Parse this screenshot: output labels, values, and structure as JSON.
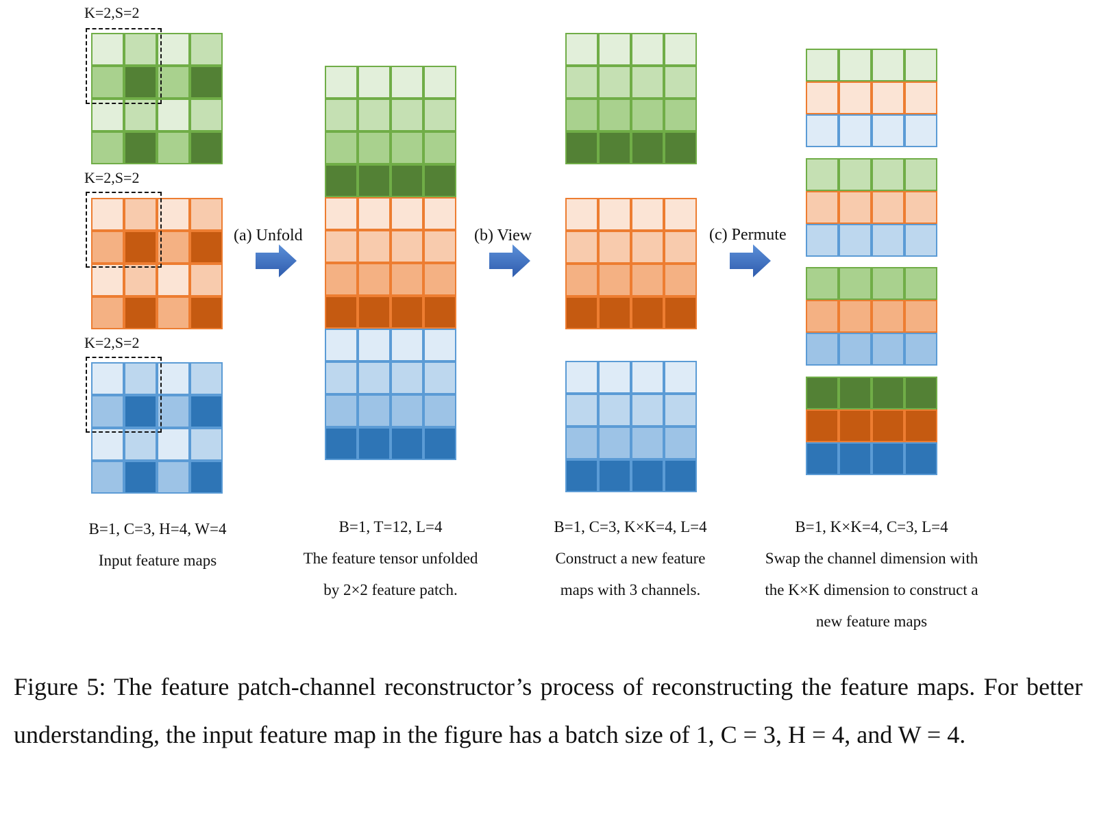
{
  "colors": {
    "green": [
      "#e2efda",
      "#c5e0b3",
      "#a9d18e",
      "#538135"
    ],
    "green_border": "#70ad47",
    "orange": [
      "#fbe4d5",
      "#f8cbad",
      "#f4b183",
      "#c55a11"
    ],
    "orange_border": "#ed7d31",
    "blue": [
      "#deebf7",
      "#bdd7ee",
      "#9dc3e6",
      "#2e75b6"
    ],
    "blue_border": "#5b9bd5",
    "arrow": "#4472c4"
  },
  "kernel_labels": [
    "K=2,S=2",
    "K=2,S=2",
    "K=2,S=2"
  ],
  "ops": {
    "unfold": "(a) Unfold",
    "view": "(b) View",
    "permute": "(c) Permute"
  },
  "columns": {
    "input": {
      "dims": "B=1, C=3, H=4, W=4",
      "desc": [
        "Input feature maps"
      ]
    },
    "unfold": {
      "dims": "B=1, T=12, L=4",
      "desc": [
        "The feature tensor unfolded",
        "by 2×2 feature patch."
      ]
    },
    "view": {
      "dims": "B=1, C=3, K×K=4, L=4",
      "desc": [
        "Construct a new feature",
        "maps with 3 channels."
      ]
    },
    "permute": {
      "dims": "B=1, K×K=4, C=3, L=4",
      "desc": [
        "Swap the channel dimension with",
        "the K×K dimension to construct a",
        "new feature maps"
      ]
    }
  },
  "icons": {
    "arrow": "right-arrow-icon"
  },
  "caption": "Figure 5: The feature patch-channel reconstructor’s process of reconstructing the feature maps. For better understanding, the input feature map in the figure has a batch size of 1, C = 3, H = 4, and W = 4."
}
